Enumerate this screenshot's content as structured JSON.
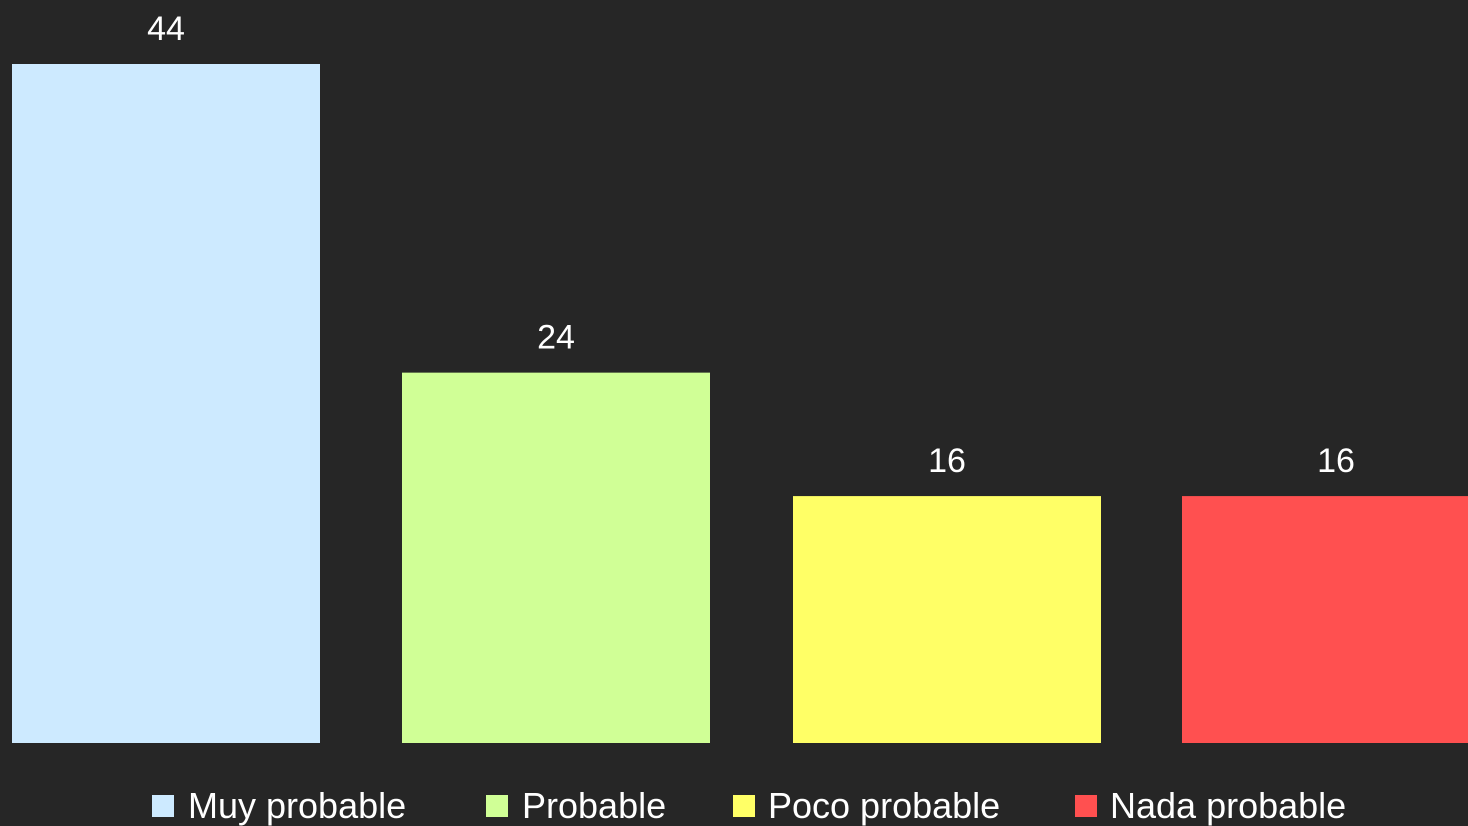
{
  "chart_data": {
    "type": "bar",
    "categories": [
      "Muy probable",
      "Probable",
      "Poco probable",
      "Nada probable"
    ],
    "values": [
      44,
      24,
      16,
      16
    ],
    "colors": [
      "#cdeaff",
      "#d0ff96",
      "#ffff66",
      "#ff5050"
    ],
    "title": "",
    "xlabel": "",
    "ylabel": "",
    "ylim": [
      0,
      44
    ],
    "grid": false,
    "legend": {
      "placement": "bottom",
      "entries": [
        "Muy probable",
        "Probable",
        "Poco probable",
        "Nada probable"
      ]
    },
    "data_labels": [
      "44",
      "24",
      "16",
      "16"
    ]
  },
  "style": {
    "background": "#262626",
    "text_color": "#ffffff"
  }
}
